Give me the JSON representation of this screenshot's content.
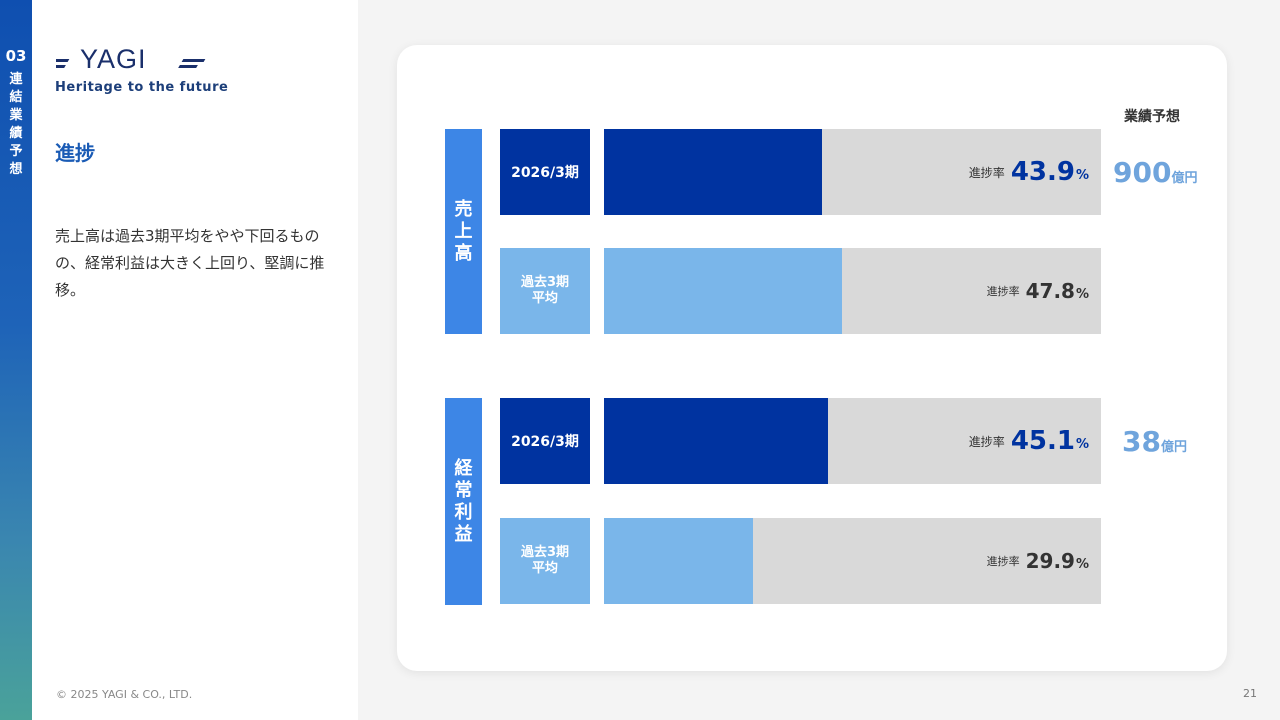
{
  "sidebar": {
    "number": "03",
    "title": "連結業績予想"
  },
  "brand": {
    "logo": "YAGI",
    "tagline": "Heritage to the future"
  },
  "section_title": "進捗",
  "description": "売上高は過去3期平均をやや下回るものの、経常利益は大きく上回り、堅調に推移。",
  "copyright": "© 2025 YAGI & CO., LTD.",
  "page_number": "21",
  "forecast_header": "業績予想",
  "rate_label": "進捗率",
  "percent_sign": "%",
  "colors": {
    "current": "#0033a0",
    "average": "#7ab6ea",
    "track": "#d9d9d9",
    "group": "#3d86e6",
    "forecast": "#6fa4dc"
  },
  "chart_data": {
    "type": "bar",
    "orientation": "horizontal",
    "xlim": [
      0,
      100
    ],
    "groups": [
      {
        "name": "売上高",
        "forecast_value": "900",
        "forecast_unit": "億円",
        "bars": [
          {
            "label": "2026/3期",
            "value": 43.9,
            "value_text": "43.9"
          },
          {
            "label": "過去3期平均",
            "value": 47.8,
            "value_text": "47.8"
          }
        ]
      },
      {
        "name": "経常利益",
        "forecast_value": "38",
        "forecast_unit": "億円",
        "bars": [
          {
            "label": "2026/3期",
            "value": 45.1,
            "value_text": "45.1"
          },
          {
            "label": "過去3期平均",
            "value": 29.9,
            "value_text": "29.9"
          }
        ]
      }
    ]
  }
}
